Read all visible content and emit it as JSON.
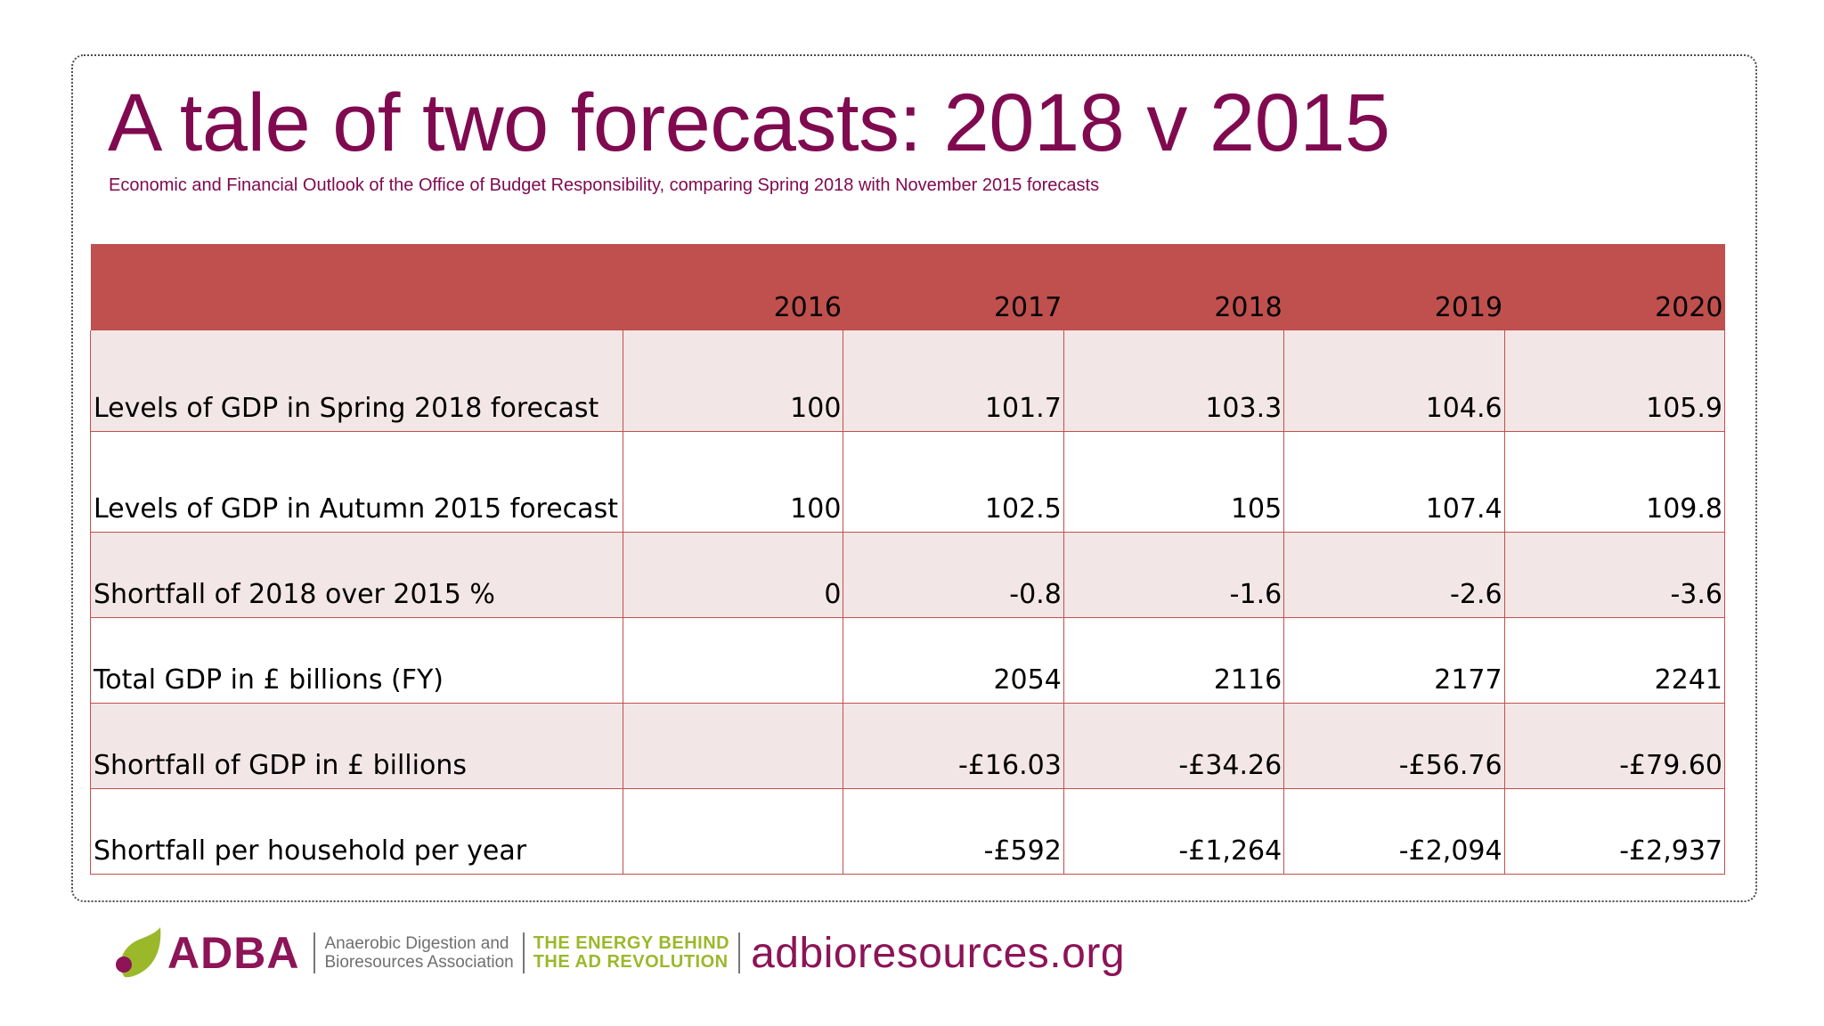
{
  "slide": {
    "title": "A tale of two forecasts: 2018 v 2015",
    "subtitle": "Economic and Financial Outlook of the Office of Budget Responsibility, comparing Spring 2018 with November 2015 forecasts"
  },
  "table": {
    "header_label": "",
    "years": [
      "2016",
      "2017",
      "2018",
      "2019",
      "2020"
    ],
    "rows": [
      {
        "label": "Levels of GDP in Spring 2018 forecast",
        "values": [
          "100",
          "101.7",
          "103.3",
          "104.6",
          "105.9"
        ]
      },
      {
        "label": "Levels of GDP in Autumn 2015 forecast",
        "values": [
          "100",
          "102.5",
          "105",
          "107.4",
          "109.8"
        ]
      },
      {
        "label": "Shortfall of 2018 over 2015 %",
        "values": [
          "0",
          "-0.8",
          "-1.6",
          "-2.6",
          "-3.6"
        ]
      },
      {
        "label": "Total GDP in £ billions (FY)",
        "values": [
          "",
          "2054",
          "2116",
          "2177",
          "2241"
        ]
      },
      {
        "label": "Shortfall of GDP in £ billions",
        "values": [
          "",
          "-£16.03",
          "-£34.26",
          "-£56.76",
          "-£79.60"
        ]
      },
      {
        "label": "Shortfall per household per year",
        "values": [
          "",
          "-£592",
          "-£1,264",
          "-£2,094",
          "-£2,937"
        ]
      }
    ]
  },
  "footer": {
    "logo_text": "ADBA",
    "association_line1": "Anaerobic Digestion and",
    "association_line2": "Bioresources Association",
    "tagline_line1": "THE ENERGY BEHIND",
    "tagline_line2": "THE AD REVOLUTION",
    "website": "adbioresources.org",
    "logo_icon": "leaf-icon",
    "colors": {
      "brand": "#8c1457",
      "accent": "#9bb82b",
      "table_header": "#c0504d",
      "band": "#f3e6e6"
    }
  }
}
